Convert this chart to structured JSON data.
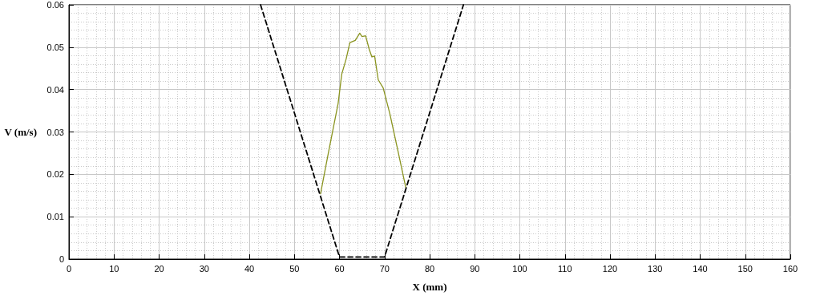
{
  "chart_data": {
    "type": "line",
    "xlabel": "X (mm)",
    "ylabel": "V (m/s)",
    "xlim": [
      0,
      160
    ],
    "xticks": [
      0,
      10,
      20,
      30,
      40,
      50,
      60,
      70,
      80,
      90,
      100,
      110,
      120,
      130,
      140,
      150,
      160
    ],
    "ylim": [
      0,
      0.06
    ],
    "yticks": [
      0,
      0.01,
      0.02,
      0.03,
      0.04,
      0.05,
      0.06
    ],
    "grid": true,
    "marker": "none",
    "series": [
      {
        "color": "#8a9420",
        "line_style": "solid",
        "x": [
          55.8,
          57.6,
          59.7,
          60.5,
          61.5,
          62.3,
          63.5,
          64.5,
          65.0,
          65.8,
          66.6,
          67.2,
          67.8,
          68.6,
          69.7,
          71.2,
          73.0,
          74.7
        ],
        "values": [
          0.0154,
          0.0254,
          0.0367,
          0.0436,
          0.0473,
          0.0511,
          0.0516,
          0.0533,
          0.0525,
          0.0527,
          0.0495,
          0.0477,
          0.0479,
          0.0423,
          0.0404,
          0.0342,
          0.0254,
          0.0169
        ]
      },
      {
        "color": "#000000",
        "line_style": "dashed",
        "x": [
          42.5,
          60,
          70,
          87.5
        ],
        "values": [
          0.06,
          0.0005,
          0.0005,
          0.06
        ]
      }
    ]
  }
}
